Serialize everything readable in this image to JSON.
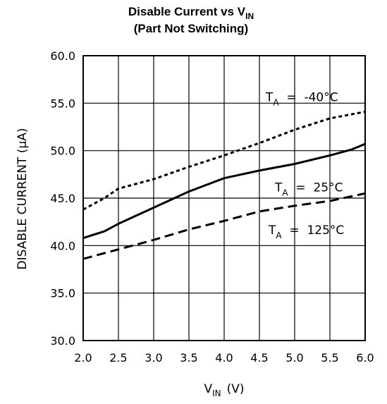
{
  "chart_data": {
    "type": "line",
    "title_line1": "Disable Current vs V",
    "title_line1_sub": "IN",
    "title_line2": "(Part Not Switching)",
    "xlabel_main": "V",
    "xlabel_sub": "IN",
    "xlabel_unit": "(V)",
    "ylabel": "DISABLE CURRENT (µA)",
    "xlim": [
      2.0,
      6.0
    ],
    "ylim": [
      30.0,
      60.0
    ],
    "x_ticks": [
      "2.0",
      "2.5",
      "3.0",
      "3.5",
      "4.0",
      "4.5",
      "5.0",
      "5.5",
      "6.0"
    ],
    "y_ticks": [
      "60.0",
      "55.0",
      "50.0",
      "45.0",
      "40.0",
      "35.0",
      "30.0"
    ],
    "grid": true,
    "series": [
      {
        "name": "T_A = -40°C",
        "label_main": "T",
        "label_sub": "A",
        "label_rest": " = -40°C",
        "dash": "dotted",
        "x": [
          2.0,
          2.3,
          2.5,
          3.0,
          3.5,
          4.0,
          4.5,
          5.0,
          5.5,
          6.0
        ],
        "y": [
          43.8,
          45.0,
          46.0,
          47.0,
          48.3,
          49.5,
          50.8,
          52.2,
          53.4,
          54.1
        ]
      },
      {
        "name": "T_A = 25°C",
        "label_main": "T",
        "label_sub": "A",
        "label_rest": " = 25°C",
        "dash": "solid",
        "x": [
          2.0,
          2.3,
          2.5,
          3.0,
          3.5,
          4.0,
          4.5,
          5.0,
          5.5,
          5.8,
          6.0
        ],
        "y": [
          40.8,
          41.5,
          42.3,
          44.0,
          45.7,
          47.1,
          47.9,
          48.6,
          49.5,
          50.1,
          50.7
        ]
      },
      {
        "name": "T_A = 125°C",
        "label_main": "T",
        "label_sub": "A",
        "label_rest": " = 125°C",
        "dash": "dashed",
        "x": [
          2.0,
          2.5,
          3.0,
          3.5,
          4.0,
          4.5,
          5.0,
          5.5,
          6.0
        ],
        "y": [
          38.6,
          39.6,
          40.6,
          41.7,
          42.6,
          43.6,
          44.2,
          44.7,
          45.5
        ]
      }
    ]
  }
}
